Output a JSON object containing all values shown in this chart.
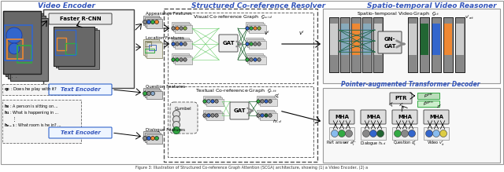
{
  "bg_color": "#FFFFFF",
  "border_color": "#888888",
  "section_title_color": "#3355BB",
  "section_titles": [
    "Video Encoder",
    "Structured Co-reference Resolver",
    "Spatio-temporal Video Reasoner"
  ],
  "pointer_decoder_title": "Pointer-augmented Transformer Decoder",
  "caption": "Figure 3: Illustration of Structured Co-reference Graph Attention (SCGA) architecture, showing (1) a Video Encoder, (2) a",
  "colors": {
    "gray": "#888888",
    "mid_gray": "#AAAAAA",
    "light_gray": "#CCCCCC",
    "blue": "#3366CC",
    "light_blue": "#6699DD",
    "green": "#33AA44",
    "dark_green": "#226633",
    "olive": "#88AA44",
    "orange": "#EE8833",
    "yellow": "#DDCC44",
    "teal": "#44AAAA",
    "box_gray": "#DDDDDD",
    "dashed_bg": "#F5F5F5"
  },
  "video_frame_appearance": [
    "#888888",
    "#3366CC",
    "#33AA44",
    "#EE8833"
  ],
  "location_frame_colors": [
    "#CCCCCC"
  ],
  "visual_graph_input_rows": [
    [
      "#888888",
      "#EE8833",
      "#888888",
      "#88AA44"
    ],
    [
      "#3366CC",
      "#888888",
      "#3366CC",
      "#888888"
    ],
    [
      "#33AA44",
      "#33AA44",
      "#888888",
      "#888888"
    ]
  ],
  "visual_graph_output_rows": [
    [
      "#3366CC",
      "#33AA44",
      "#EE8833",
      "#88AA44"
    ],
    [
      "#3366CC",
      "#33AA44",
      "#888888",
      "#888888"
    ],
    [
      "#33AA44",
      "#888888",
      "#3366CC",
      "#888888"
    ]
  ],
  "textual_input_rows": [
    [
      "#33AA44",
      "#88AA44",
      "#3366CC",
      "#888888"
    ],
    [
      "#888888",
      "#3366CC",
      "#888888",
      "#888888"
    ]
  ],
  "textual_output_rows": [
    [
      "#33AA44",
      "#888888",
      "#3366CC",
      "#888888"
    ],
    [
      "#888888",
      "#3366CC",
      "#226633",
      "#888888"
    ]
  ],
  "mha_input_colors": [
    [
      "#88BBEE",
      "#33AA44",
      "#888888"
    ],
    [
      "#888888",
      "#3366CC",
      "#226633"
    ],
    [
      "#33AA44",
      "#888888",
      "#3366CC"
    ],
    [
      "#3366CC",
      "#88BBEE",
      "#DDCC44"
    ]
  ],
  "spatio_frame_colors_left": [
    "#CCCCCC",
    "#88BBFF",
    "#EE8833",
    "#88BBFF",
    "#CCCCCC"
  ],
  "spatio_frame_colors_right": [
    "#CCCCCC",
    "#226633",
    "#3366CC",
    "#EE8833",
    "#CCCCCC"
  ]
}
